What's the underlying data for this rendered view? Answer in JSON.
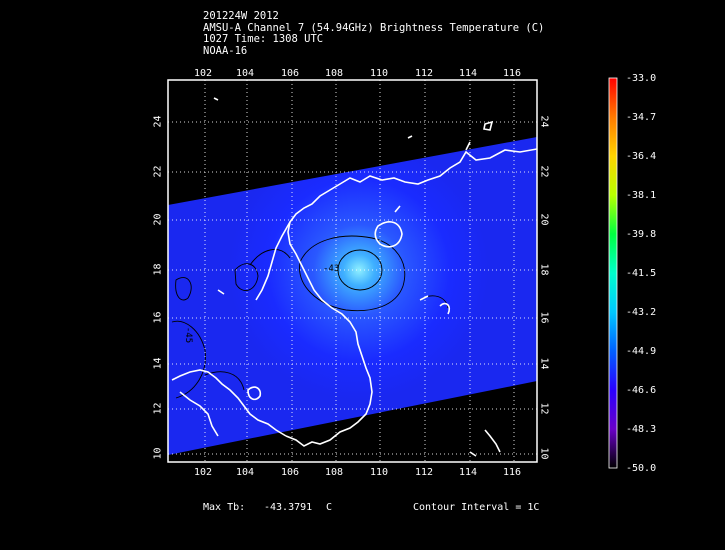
{
  "header": {
    "line1": "201224W 2012",
    "line2": "AMSU-A Channel 7 (54.94GHz) Brightness Temperature (C)",
    "line3": "1027 Time: 1308 UTC",
    "line4": "NOAA-16"
  },
  "map": {
    "lon_ticks": [
      "102",
      "104",
      "106",
      "108",
      "110",
      "112",
      "114",
      "116"
    ],
    "lat_ticks": [
      "10",
      "12",
      "14",
      "16",
      "18",
      "20",
      "22",
      "24"
    ],
    "contour_labels": [
      "-43",
      "-45"
    ],
    "swath_color": "#1a2bff",
    "center_color": "#66e0ff",
    "coastline_color": "#ffffff"
  },
  "colorbar": {
    "ticks": [
      "-33.0",
      "-34.7",
      "-36.4",
      "-38.1",
      "-39.8",
      "-41.5",
      "-43.2",
      "-44.9",
      "-46.6",
      "-48.3",
      "-50.0"
    ],
    "colors": [
      "#ff0000",
      "#ff7a00",
      "#ffd400",
      "#b8ff00",
      "#00ff40",
      "#00ffcc",
      "#00c8ff",
      "#0060ff",
      "#2a00ff",
      "#6a00c8",
      "#000000"
    ]
  },
  "footer": {
    "max_tb_label": "Max Tb:",
    "max_tb_value": "-43.3791",
    "max_tb_unit": "C",
    "contour": "Contour Interval = 1C"
  }
}
